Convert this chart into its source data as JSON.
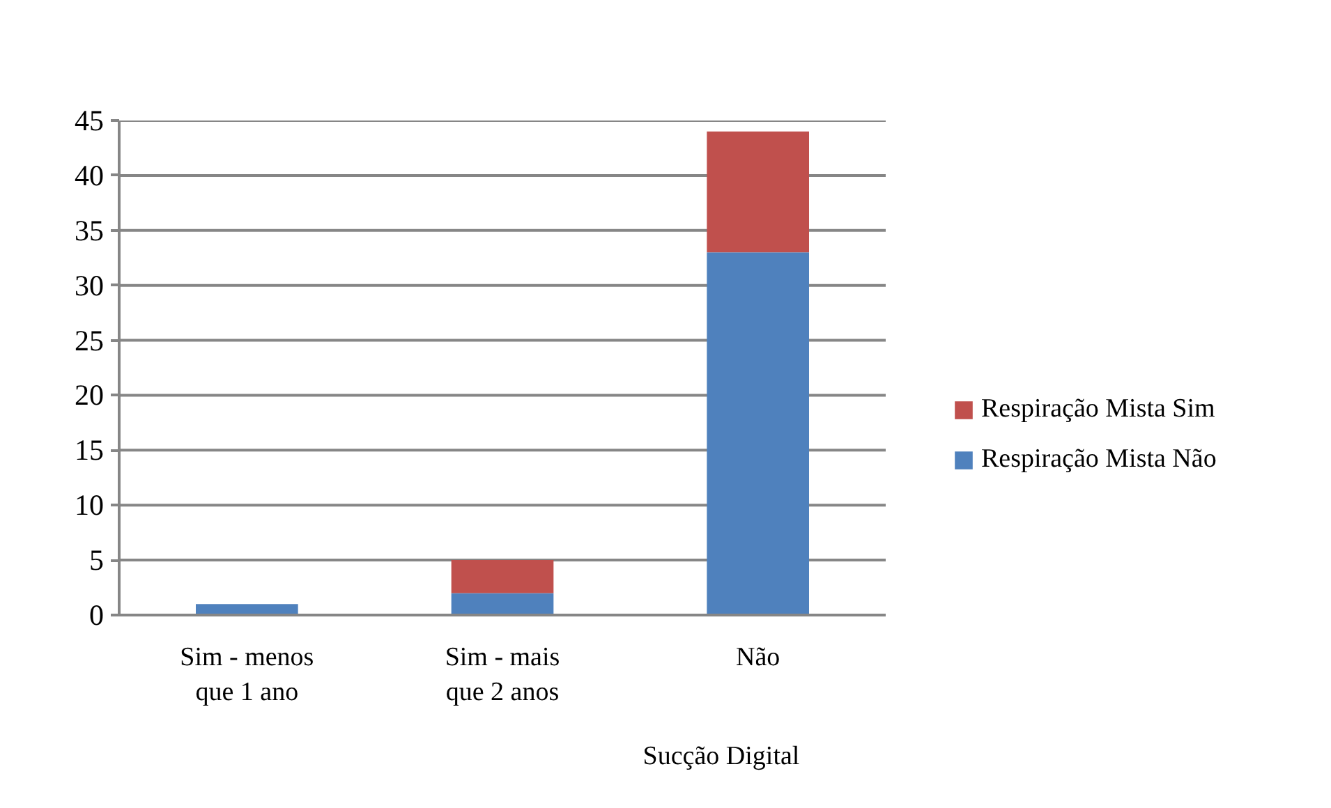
{
  "chart_data": {
    "type": "bar",
    "stacked": true,
    "categories": [
      "Sim - menos que 1 ano",
      "Sim - mais que 2 anos",
      "Não"
    ],
    "xlabel": "Sucção Digital",
    "series": [
      {
        "name": "Respiração Mista Não",
        "color": "#4f81bd",
        "values": [
          1,
          2,
          33
        ]
      },
      {
        "name": "Respiração Mista Sim",
        "color": "#c0504d",
        "values": [
          0,
          3,
          11
        ]
      }
    ],
    "ylim": [
      0,
      45
    ],
    "yticks": [
      0,
      5,
      10,
      15,
      20,
      25,
      30,
      35,
      40,
      45
    ],
    "grid": "y",
    "legend": "right"
  }
}
